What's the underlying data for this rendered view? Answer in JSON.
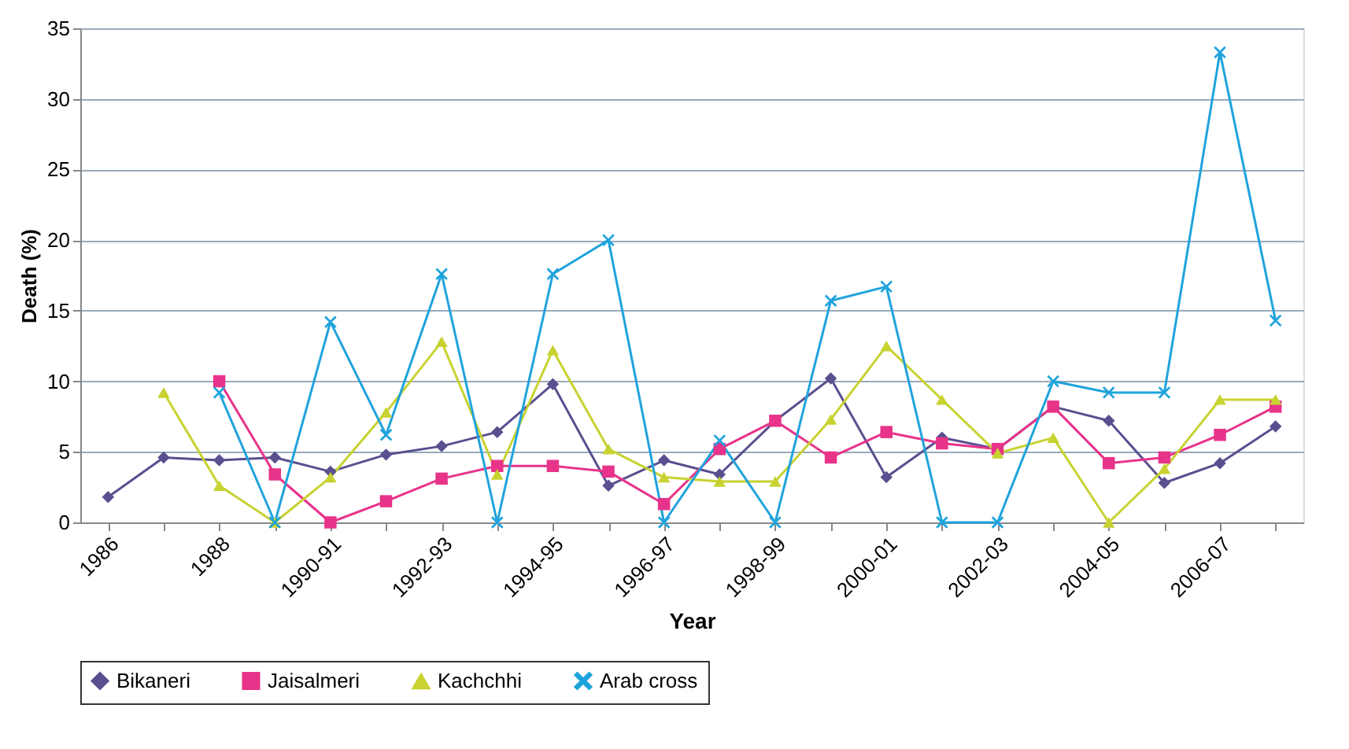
{
  "chart_data": {
    "type": "line",
    "xlabel": "Year",
    "ylabel": "Death (%)",
    "categories": [
      "1986",
      null,
      "1988",
      null,
      "1990-91",
      null,
      "1992-93",
      null,
      "1994-95",
      null,
      "1996-97",
      null,
      "1998-99",
      null,
      "2000-01",
      null,
      "2002-03",
      null,
      "2004-05",
      null,
      "2006-07",
      null
    ],
    "series": [
      {
        "name": "Bikaneri",
        "color": "#5a4f8f",
        "marker": "diamond",
        "values": [
          1.8,
          4.6,
          4.4,
          4.6,
          3.6,
          4.8,
          5.4,
          6.4,
          9.8,
          2.6,
          4.4,
          3.4,
          7.2,
          10.2,
          3.2,
          6.0,
          5.2,
          8.2,
          7.2,
          2.8,
          4.2,
          6.8
        ]
      },
      {
        "name": "Jaisalmeri",
        "color": "#e8338a",
        "marker": "square",
        "values": [
          null,
          null,
          10.0,
          3.4,
          0,
          1.5,
          3.1,
          4.0,
          4.0,
          3.6,
          1.3,
          5.2,
          7.2,
          4.6,
          6.4,
          5.6,
          5.2,
          8.2,
          4.2,
          4.6,
          6.2,
          8.2
        ]
      },
      {
        "name": "Kachchhi",
        "color": "#c8d230",
        "marker": "triangle",
        "values": [
          null,
          9.2,
          2.6,
          0,
          3.2,
          7.8,
          12.8,
          3.4,
          12.2,
          5.2,
          3.2,
          2.9,
          2.9,
          7.3,
          12.5,
          8.7,
          4.9,
          6.0,
          0,
          3.8,
          8.7,
          8.7
        ]
      },
      {
        "name": "Arab cross",
        "color": "#1fa3dc",
        "marker": "cross",
        "values": [
          null,
          null,
          9.2,
          0,
          14.2,
          6.2,
          17.6,
          0,
          17.6,
          20.0,
          0,
          5.8,
          0,
          15.7,
          16.7,
          0,
          0,
          10.0,
          9.2,
          9.2,
          33.3,
          14.3
        ]
      }
    ],
    "ylim": [
      0,
      35
    ],
    "yticks": [
      0,
      5,
      10,
      15,
      20,
      25,
      30,
      35
    ],
    "grid": "y",
    "legend": "bottom"
  }
}
